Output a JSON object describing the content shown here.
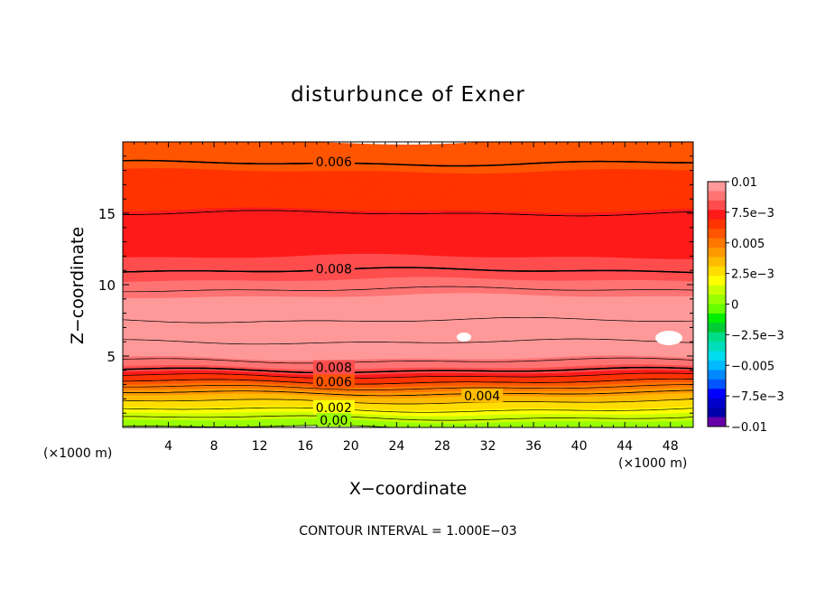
{
  "chart_data": {
    "type": "heatmap",
    "title": "disturbunce of Exner",
    "xlabel": "X−coordinate",
    "ylabel": "Z−coordinate",
    "x_unit": "(×1000 m)",
    "x_ticks": [
      {
        "value": 4,
        "label": "4"
      },
      {
        "value": 8,
        "label": "8"
      },
      {
        "value": 12,
        "label": "12"
      },
      {
        "value": 16,
        "label": "16"
      },
      {
        "value": 20,
        "label": "20"
      },
      {
        "value": 24,
        "label": "24"
      },
      {
        "value": 28,
        "label": "28"
      },
      {
        "value": 32,
        "label": "32"
      },
      {
        "value": 36,
        "label": "36"
      },
      {
        "value": 40,
        "label": "40"
      },
      {
        "value": 44,
        "label": "44"
      },
      {
        "value": 48,
        "label": "48"
      }
    ],
    "y_ticks": [
      {
        "value": 5,
        "label": "5"
      },
      {
        "value": 10,
        "label": "10"
      },
      {
        "value": 15,
        "label": "15"
      }
    ],
    "xlim": [
      0,
      50
    ],
    "ylim": [
      0,
      20
    ],
    "contour_interval_text": "CONTOUR INTERVAL = 1.000E−03",
    "contour_labels": [
      {
        "text": "0.006",
        "x": 18.5,
        "z": 18.6
      },
      {
        "text": "0.008",
        "x": 18.5,
        "z": 11.1
      },
      {
        "text": "0.008",
        "x": 18.5,
        "z": 4.2
      },
      {
        "text": "0.006",
        "x": 18.5,
        "z": 3.2
      },
      {
        "text": "0.004",
        "x": 31.5,
        "z": 2.2
      },
      {
        "text": "0.002",
        "x": 18.5,
        "z": 1.4
      },
      {
        "text": "0.00",
        "x": 18.5,
        "z": 0.5
      }
    ],
    "colorbar": {
      "min": -0.01,
      "max": 0.01,
      "tick_labels": [
        "0.01",
        "7.5e−3",
        "0.005",
        "2.5e−3",
        "0",
        "−2.5e−3",
        "−0.005",
        "−7.5e−3",
        "−0.01"
      ],
      "colors_top_to_bottom": [
        "#ff9999",
        "#ff7373",
        "#ff4d4d",
        "#ff1a1a",
        "#ff3300",
        "#ff5500",
        "#ff7700",
        "#ff9900",
        "#ffbb00",
        "#ffdd00",
        "#ffff00",
        "#ccff00",
        "#99ff00",
        "#66ff00",
        "#00ee00",
        "#00cc33",
        "#00dd88",
        "#00ddbb",
        "#00ddee",
        "#00bbff",
        "#0088ff",
        "#0055ff",
        "#0000ff",
        "#0000cc",
        "#0000aa",
        "#6600aa"
      ]
    },
    "field_profile": {
      "z": [
        0,
        0.4,
        1.0,
        1.7,
        2.4,
        3.2,
        4.0,
        4.8,
        6.0,
        7.5,
        8.5,
        10.0,
        11.0,
        13.0,
        15.0,
        17.0,
        18.5,
        20.0
      ],
      "value": [
        0.0,
        0.0005,
        0.0016,
        0.0028,
        0.004,
        0.006,
        0.008,
        0.0092,
        0.01,
        0.01,
        0.0097,
        0.0088,
        0.008,
        0.0074,
        0.007,
        0.0065,
        0.006,
        0.0056
      ]
    },
    "grid": false,
    "legend": "right"
  }
}
